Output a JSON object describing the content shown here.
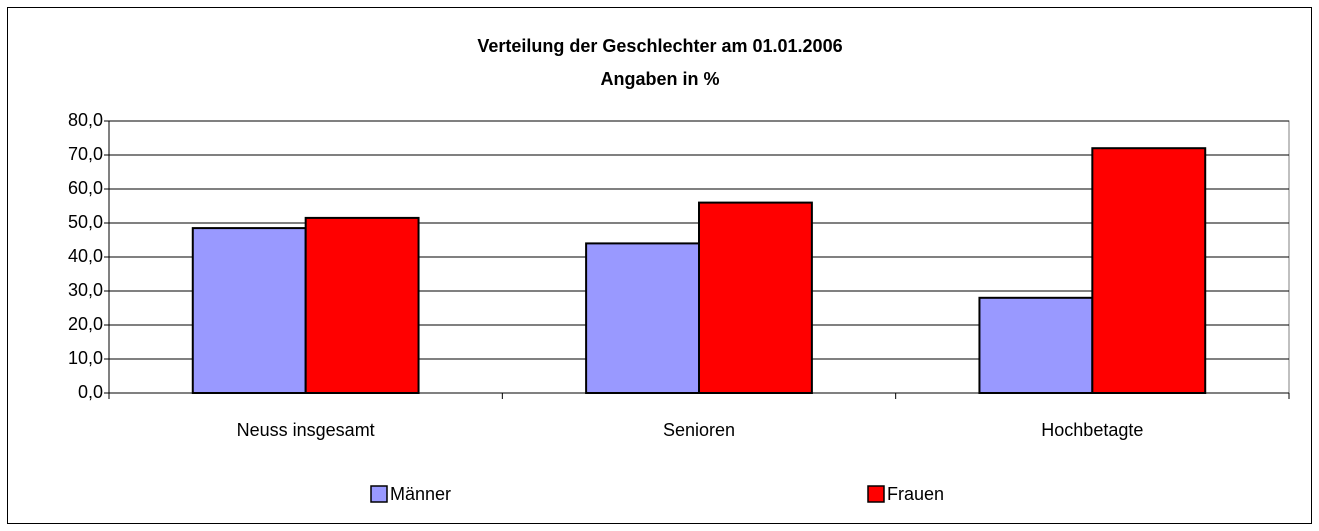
{
  "chart_data": {
    "type": "bar",
    "title": "Verteilung der Geschlechter am 01.01.2006",
    "subtitle": "Angaben in %",
    "categories": [
      "Neuss insgesamt",
      "Senioren",
      "Hochbetagte"
    ],
    "series": [
      {
        "name": "Männer",
        "color": "#9999ff",
        "values": [
          48.5,
          44.0,
          28.0
        ]
      },
      {
        "name": "Frauen",
        "color": "#ff0000",
        "values": [
          51.5,
          56.0,
          72.0
        ]
      }
    ],
    "ylim": [
      0,
      80
    ],
    "yticks": [
      {
        "value": 0,
        "label": "0,0"
      },
      {
        "value": 10,
        "label": "10,0"
      },
      {
        "value": 20,
        "label": "20,0"
      },
      {
        "value": 30,
        "label": "30,0"
      },
      {
        "value": 40,
        "label": "40,0"
      },
      {
        "value": 50,
        "label": "50,0"
      },
      {
        "value": 60,
        "label": "60,0"
      },
      {
        "value": 70,
        "label": "70,0"
      },
      {
        "value": 80,
        "label": "80,0"
      }
    ],
    "grid": true,
    "legend": "bottom"
  }
}
